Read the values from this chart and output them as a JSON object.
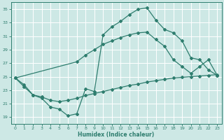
{
  "background_color": "#cde8e5",
  "grid_color": "#b0d4d0",
  "line_color": "#2e7d6e",
  "xlabel": "Humidex (Indice chaleur)",
  "xlim": [
    -0.5,
    23.5
  ],
  "ylim": [
    18,
    36
  ],
  "yticks": [
    19,
    21,
    23,
    25,
    27,
    29,
    31,
    33,
    35
  ],
  "xticks": [
    0,
    1,
    2,
    3,
    4,
    5,
    6,
    7,
    8,
    9,
    10,
    11,
    12,
    13,
    14,
    15,
    16,
    17,
    18,
    19,
    20,
    21,
    22,
    23
  ],
  "line1_x": [
    0,
    1,
    2,
    3,
    4,
    5,
    6,
    7,
    8,
    9,
    10,
    11,
    12,
    13,
    14,
    15,
    16,
    17,
    18,
    19,
    20,
    21,
    22,
    23
  ],
  "line1_y": [
    24.8,
    23.8,
    22.3,
    21.8,
    20.5,
    20.2,
    19.2,
    19.5,
    23.2,
    22.8,
    31.2,
    32.4,
    33.2,
    34.2,
    35.0,
    35.2,
    33.4,
    32.0,
    31.5,
    30.3,
    27.8,
    27.5,
    26.0,
    25.2
  ],
  "line2_x": [
    0,
    7,
    8,
    9,
    10,
    11,
    12,
    13,
    14,
    15,
    16,
    17,
    18,
    19,
    20,
    21,
    22,
    23
  ],
  "line2_y": [
    24.8,
    27.2,
    28.2,
    29.0,
    29.8,
    30.3,
    30.8,
    31.2,
    31.5,
    31.6,
    30.5,
    29.5,
    27.5,
    26.5,
    25.5,
    26.5,
    27.5,
    25.2
  ],
  "line3_x": [
    0,
    1,
    2,
    3,
    4,
    5,
    6,
    7,
    8,
    9,
    10,
    11,
    12,
    13,
    14,
    15,
    16,
    17,
    18,
    19,
    20,
    21,
    22,
    23
  ],
  "line3_y": [
    24.8,
    23.5,
    22.3,
    22.0,
    21.5,
    21.3,
    21.5,
    21.8,
    22.2,
    22.5,
    22.8,
    23.1,
    23.4,
    23.7,
    23.9,
    24.2,
    24.4,
    24.6,
    24.8,
    24.9,
    25.0,
    25.1,
    25.2,
    25.3
  ]
}
